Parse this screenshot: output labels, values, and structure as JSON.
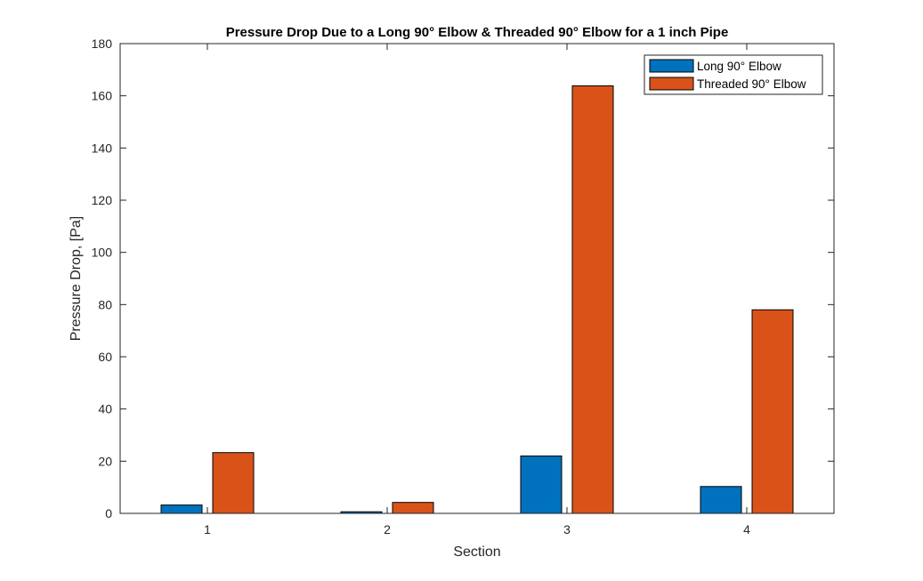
{
  "chart_data": {
    "type": "bar",
    "title": "Pressure Drop Due to a Long 90° Elbow & Threaded 90° Elbow for a 1 inch Pipe",
    "xlabel": "Section",
    "ylabel": "Pressure Drop, [Pa]",
    "categories": [
      "1",
      "2",
      "3",
      "4"
    ],
    "ylim": [
      0,
      180
    ],
    "yticks": [
      0,
      20,
      40,
      60,
      80,
      100,
      120,
      140,
      160,
      180
    ],
    "grid": false,
    "legend_position": "top-right",
    "series": [
      {
        "name": "Long 90° Elbow",
        "color": "#0072BD",
        "values": [
          3.2,
          0.6,
          22,
          10.3
        ]
      },
      {
        "name": "Threaded 90° Elbow",
        "color": "#D95319",
        "values": [
          23.3,
          4.2,
          163.8,
          78
        ]
      }
    ]
  }
}
